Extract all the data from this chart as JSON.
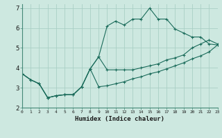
{
  "xlabel": "Humidex (Indice chaleur)",
  "ylabel": "",
  "bg_color": "#cde8e0",
  "grid_color": "#aacfc5",
  "line_color": "#1a6b5a",
  "xlim": [
    0,
    23
  ],
  "ylim": [
    2,
    7.2
  ],
  "xtick_labels": [
    "0",
    "1",
    "2",
    "3",
    "4",
    "5",
    "6",
    "7",
    "8",
    "9",
    "10",
    "11",
    "12",
    "13",
    "14",
    "15",
    "16",
    "17",
    "18",
    "19",
    "20",
    "21",
    "22",
    "23"
  ],
  "ytick_values": [
    2,
    3,
    4,
    5,
    6,
    7
  ],
  "line1_x": [
    0,
    1,
    2,
    3,
    4,
    5,
    6,
    7,
    8,
    9,
    10,
    11,
    12,
    13,
    14,
    15,
    16,
    17,
    18,
    19,
    20,
    21,
    22,
    23
  ],
  "line1_y": [
    3.7,
    3.4,
    3.2,
    2.5,
    2.6,
    2.65,
    2.65,
    3.05,
    3.95,
    4.55,
    6.1,
    6.35,
    6.15,
    6.45,
    6.45,
    7.0,
    6.45,
    6.45,
    5.95,
    5.75,
    5.55,
    5.55,
    5.2,
    5.15
  ],
  "line2_x": [
    0,
    1,
    2,
    3,
    4,
    5,
    6,
    7,
    8,
    9,
    10,
    11,
    12,
    13,
    14,
    15,
    16,
    17,
    18,
    19,
    20,
    21,
    22,
    23
  ],
  "line2_y": [
    3.7,
    3.4,
    3.2,
    2.5,
    2.6,
    2.65,
    2.65,
    3.05,
    3.95,
    4.55,
    3.9,
    3.9,
    3.9,
    3.9,
    4.0,
    4.1,
    4.2,
    4.4,
    4.5,
    4.65,
    5.0,
    5.2,
    5.4,
    5.2
  ],
  "line3_x": [
    0,
    1,
    2,
    3,
    4,
    5,
    6,
    7,
    8,
    9,
    10,
    11,
    12,
    13,
    14,
    15,
    16,
    17,
    18,
    19,
    20,
    21,
    22,
    23
  ],
  "line3_y": [
    3.7,
    3.4,
    3.2,
    2.5,
    2.6,
    2.65,
    2.65,
    3.05,
    3.95,
    3.05,
    3.1,
    3.2,
    3.3,
    3.45,
    3.55,
    3.7,
    3.8,
    3.95,
    4.1,
    4.25,
    4.45,
    4.6,
    4.8,
    5.15
  ]
}
